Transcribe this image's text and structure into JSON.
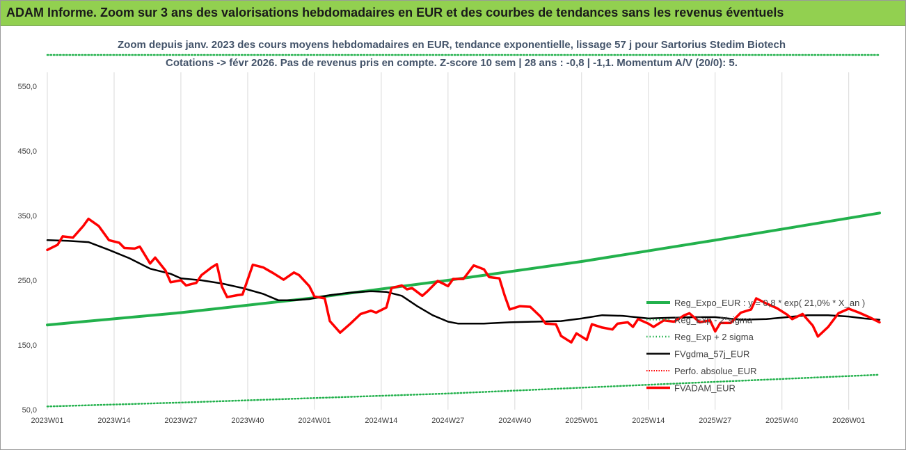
{
  "banner": {
    "title": "ADAM Informe. Zoom sur 3 ans des valorisations hebdomadaires en EUR et des courbes de tendances sans les revenus éventuels"
  },
  "colors": {
    "banner_bg": "#92d050",
    "reg_expo": "#22b14c",
    "fvgdma": "#000000",
    "fvadam": "#ff0000",
    "perfo": "#ff0000",
    "title_text": "#44546a"
  },
  "chart_data": {
    "type": "line",
    "title_line1": "Zoom depuis janv. 2023 des cours moyens hebdomadaires en EUR, tendance exponentielle, lissage 57 j pour Sartorius Stedim Biotech",
    "title_line2": "Cotations -> févr 2026.  Pas de revenus pris en compte. Z-score 10 sem | 28 ans : -0,8 | -1,1. Momentum A/V (20/0): 5.",
    "ylim": [
      50,
      600
    ],
    "y_ticks": [
      "50,0",
      "150,0",
      "250,0",
      "350,0",
      "450,0",
      "550,0"
    ],
    "y_tick_values": [
      50,
      150,
      250,
      350,
      450,
      550
    ],
    "x_tick_labels": [
      "2023W01",
      "2023W14",
      "2023W27",
      "2023W40",
      "2024W01",
      "2024W14",
      "2024W27",
      "2024W40",
      "2025W01",
      "2025W14",
      "2025W27",
      "2025W40",
      "2026W01"
    ],
    "x_tick_weeks": [
      0,
      13,
      26,
      39,
      52,
      65,
      78,
      91,
      104,
      117,
      130,
      143,
      156
    ],
    "weeks_total": 162,
    "legend": [
      "Reg_Expo_EUR : y = 0,8 * exp( 21,0% * X_an )",
      "Reg_Exp - 2*sigma",
      "Reg_Exp + 2 sigma",
      "FVgdma_57j_EUR",
      "Perfo. absolue_EUR",
      "FVADAM_EUR"
    ],
    "series": [
      {
        "name": "Reg_Expo_EUR : y = 0,8 * exp( 21,0% * X_an )",
        "style": "solid-thick",
        "points": [
          [
            0,
            181
          ],
          [
            26,
            200
          ],
          [
            52,
            223
          ],
          [
            78,
            250
          ],
          [
            104,
            279
          ],
          [
            130,
            312
          ],
          [
            162,
            354
          ]
        ]
      },
      {
        "name": "Reg_Exp - 2*sigma",
        "style": "dotted",
        "points": [
          [
            0,
            55
          ],
          [
            26,
            61
          ],
          [
            52,
            68
          ],
          [
            78,
            75
          ],
          [
            104,
            84
          ],
          [
            130,
            93
          ],
          [
            162,
            104
          ]
        ]
      },
      {
        "name": "Reg_Exp + 2 sigma",
        "style": "dotted",
        "points": [
          [
            0,
            600
          ],
          [
            162,
            600
          ]
        ]
      },
      {
        "name": "FVgdma_57j_EUR",
        "style": "solid",
        "points": [
          [
            0,
            312
          ],
          [
            4,
            311
          ],
          [
            8,
            309
          ],
          [
            12,
            297
          ],
          [
            16,
            284
          ],
          [
            20,
            268
          ],
          [
            24,
            260
          ],
          [
            26,
            253
          ],
          [
            30,
            250
          ],
          [
            34,
            245
          ],
          [
            38,
            238
          ],
          [
            42,
            229
          ],
          [
            45,
            219
          ],
          [
            48,
            219
          ],
          [
            51,
            221
          ],
          [
            55,
            227
          ],
          [
            59,
            231
          ],
          [
            63,
            233
          ],
          [
            66,
            232
          ],
          [
            69,
            226
          ],
          [
            72,
            210
          ],
          [
            75,
            196
          ],
          [
            78,
            186
          ],
          [
            80,
            183
          ],
          [
            85,
            183
          ],
          [
            90,
            185
          ],
          [
            95,
            186
          ],
          [
            100,
            187
          ],
          [
            104,
            191
          ],
          [
            108,
            196
          ],
          [
            112,
            195
          ],
          [
            117,
            191
          ],
          [
            121,
            192
          ],
          [
            126,
            193
          ],
          [
            130,
            193
          ],
          [
            135,
            189
          ],
          [
            140,
            190
          ],
          [
            144,
            193
          ],
          [
            148,
            196
          ],
          [
            152,
            196
          ],
          [
            156,
            194
          ],
          [
            159,
            191
          ],
          [
            162,
            189
          ]
        ]
      },
      {
        "name": "FVADAM_EUR",
        "style": "solid-thick",
        "points": [
          [
            0,
            297
          ],
          [
            2,
            305
          ],
          [
            3,
            318
          ],
          [
            5,
            316
          ],
          [
            7,
            334
          ],
          [
            8,
            345
          ],
          [
            10,
            334
          ],
          [
            12,
            312
          ],
          [
            14,
            308
          ],
          [
            15,
            300
          ],
          [
            17,
            299
          ],
          [
            18,
            302
          ],
          [
            20,
            276
          ],
          [
            21,
            285
          ],
          [
            23,
            265
          ],
          [
            24,
            247
          ],
          [
            26,
            250
          ],
          [
            27,
            242
          ],
          [
            29,
            246
          ],
          [
            30,
            258
          ],
          [
            32,
            270
          ],
          [
            33,
            275
          ],
          [
            34,
            240
          ],
          [
            35,
            224
          ],
          [
            37,
            227
          ],
          [
            38,
            228
          ],
          [
            40,
            274
          ],
          [
            42,
            270
          ],
          [
            44,
            261
          ],
          [
            46,
            251
          ],
          [
            48,
            262
          ],
          [
            49,
            258
          ],
          [
            51,
            241
          ],
          [
            52,
            225
          ],
          [
            54,
            222
          ],
          [
            55,
            187
          ],
          [
            57,
            169
          ],
          [
            59,
            183
          ],
          [
            61,
            198
          ],
          [
            63,
            203
          ],
          [
            64,
            200
          ],
          [
            66,
            208
          ],
          [
            67,
            238
          ],
          [
            69,
            242
          ],
          [
            70,
            236
          ],
          [
            71,
            238
          ],
          [
            73,
            226
          ],
          [
            74,
            233
          ],
          [
            76,
            249
          ],
          [
            78,
            241
          ],
          [
            79,
            252
          ],
          [
            81,
            252
          ],
          [
            83,
            273
          ],
          [
            85,
            267
          ],
          [
            86,
            255
          ],
          [
            88,
            253
          ],
          [
            89,
            227
          ],
          [
            90,
            205
          ],
          [
            92,
            210
          ],
          [
            94,
            209
          ],
          [
            96,
            194
          ],
          [
            97,
            183
          ],
          [
            99,
            182
          ],
          [
            100,
            164
          ],
          [
            102,
            154
          ],
          [
            103,
            168
          ],
          [
            105,
            158
          ],
          [
            106,
            182
          ],
          [
            108,
            177
          ],
          [
            110,
            174
          ],
          [
            111,
            183
          ],
          [
            113,
            185
          ],
          [
            114,
            178
          ],
          [
            115,
            190
          ],
          [
            117,
            183
          ],
          [
            118,
            178
          ],
          [
            120,
            188
          ],
          [
            122,
            186
          ],
          [
            124,
            196
          ],
          [
            125,
            199
          ],
          [
            127,
            185
          ],
          [
            129,
            188
          ],
          [
            130,
            171
          ],
          [
            131,
            184
          ],
          [
            133,
            184
          ],
          [
            135,
            200
          ],
          [
            137,
            205
          ],
          [
            138,
            222
          ],
          [
            140,
            214
          ],
          [
            142,
            207
          ],
          [
            144,
            197
          ],
          [
            145,
            190
          ],
          [
            147,
            198
          ],
          [
            149,
            180
          ],
          [
            150,
            163
          ],
          [
            152,
            178
          ],
          [
            154,
            199
          ],
          [
            156,
            206
          ],
          [
            158,
            200
          ],
          [
            160,
            193
          ],
          [
            162,
            185
          ]
        ]
      },
      {
        "name": "Perfo. absolue_EUR",
        "style": "dotted",
        "points": []
      }
    ]
  }
}
